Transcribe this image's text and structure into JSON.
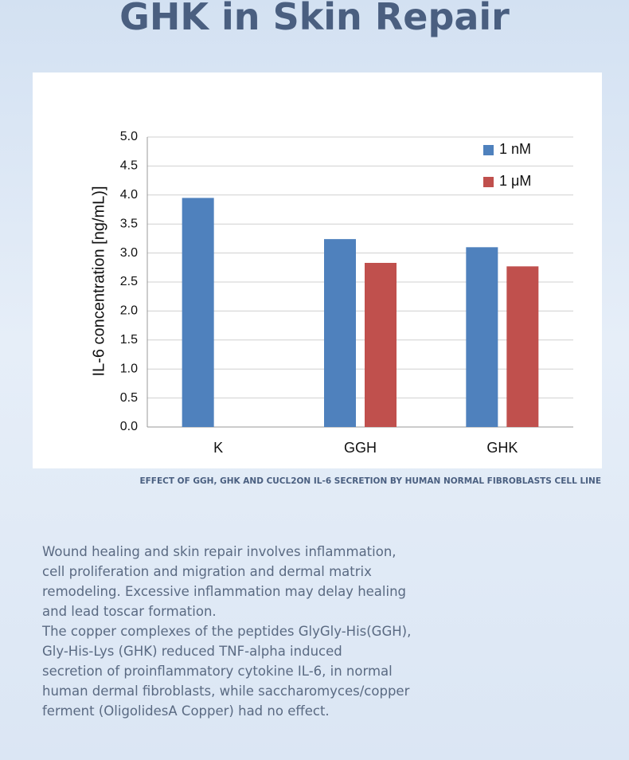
{
  "header": {
    "title": "GHK in Skin Repair"
  },
  "chart_data": {
    "type": "bar",
    "y_label": "IL-6 concentration [ng/mL)]",
    "categories": [
      "K",
      "GGH",
      "GHK"
    ],
    "series": [
      {
        "name": "1 nM",
        "color": "#4f81bd",
        "values": [
          3.95,
          3.24,
          3.1
        ]
      },
      {
        "name": "1 μM",
        "color": "#c0504d",
        "values": [
          null,
          2.83,
          2.77
        ]
      }
    ],
    "ylim": [
      0,
      5
    ],
    "yticks": [
      {
        "value": 0,
        "label": "0.0"
      },
      0.5,
      {
        "value": 1,
        "label": "1.0"
      },
      1.5,
      {
        "value": 2,
        "label": "2.0"
      },
      2.5,
      {
        "value": 3,
        "label": "3.0"
      },
      3.5,
      {
        "value": 4,
        "label": "4.0"
      },
      4.5,
      {
        "value": 5,
        "label": "5.0"
      }
    ],
    "grid": true,
    "legend": "top-right"
  },
  "caption": "EFFECT OF GGH, GHK AND CUCL2ON IL-6 SECRETION BY HUMAN NORMAL FIBROBLASTS CELL LINE",
  "body": {
    "lines": [
      "Wound healing and skin repair involves inflammation,",
      "cell proliferation and migration and dermal matrix",
      "remodeling. Excessive inflammation may delay healing",
      "and lead toscar formation.",
      "The copper complexes of the peptides GlyGly-His(GGH),",
      "Gly-His-Lys (GHK) reduced TNF-alpha induced",
      "secretion of proinflammatory cytokine IL-6, in normal",
      "human dermal fibroblasts, while saccharomyces/copper",
      "ferment (OligolidesA Copper) had no effect."
    ]
  }
}
